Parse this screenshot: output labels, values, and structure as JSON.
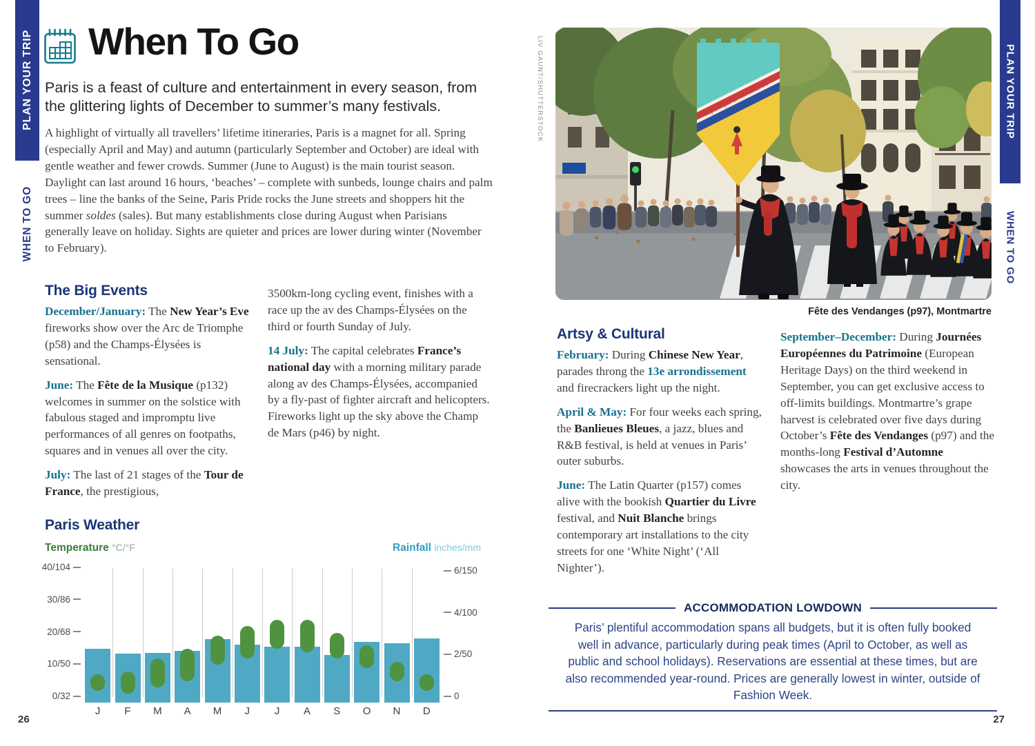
{
  "colors": {
    "sidebar_blue": "#2a3b8f",
    "heading_navy": "#1c3576",
    "date_teal": "#17728f",
    "icon_teal": "#137c8b",
    "accom_navy": "#2c4386",
    "bar_blue": "#4fa9c4",
    "range_green": "#4f9340"
  },
  "page": {
    "left_number": "26",
    "right_number": "27"
  },
  "sidebar": {
    "top_label": "PLAN YOUR TRIP",
    "bottom_label": "WHEN TO GO"
  },
  "header": {
    "title": "When To Go"
  },
  "standfirst": "Paris is a feast of culture and entertainment in every season, from the glittering lights of December to summer’s many festivals.",
  "intro": [
    [
      "p",
      "A highlight of virtually all travellers’ lifetime itineraries, Paris is a magnet for all. Spring (especially April and May) and autumn (particularly September and October) are ideal with gentle weather and fewer crowds. Summer (June to August) is the main tourist season. Daylight can last around 16 hours, ‘beaches’ – complete with sunbeds, lounge chairs and palm trees – line the banks of the Seine, Paris Pride rocks the June streets and shoppers hit the summer "
    ],
    [
      "i",
      "soldes"
    ],
    [
      "p",
      " (sales). But many establishments close during August when Parisians generally leave on holiday. Sights are quieter and prices are lower during winter (November to February)."
    ]
  ],
  "big_events": {
    "heading": "The Big Events",
    "col1": [
      [
        [
          "d",
          "December/January:"
        ],
        [
          "p",
          " The "
        ],
        [
          "b",
          "New Year’s Eve"
        ],
        [
          "p",
          " fireworks show over the Arc de Triomphe (p58) and the Champs-Élysées is sensational."
        ]
      ],
      [
        [
          "d",
          "June:"
        ],
        [
          "p",
          " The "
        ],
        [
          "b",
          "Fête de la Musique"
        ],
        [
          "p",
          " (p132) welcomes in summer on the solstice with fabulous staged and impromptu live performances of all genres on footpaths, squares and in venues all over the city."
        ]
      ],
      [
        [
          "d",
          "July:"
        ],
        [
          "p",
          " The last of 21 stages of the "
        ],
        [
          "b",
          "Tour de France"
        ],
        [
          "p",
          ", the prestigious,"
        ]
      ]
    ],
    "col2": [
      [
        [
          "p",
          "3500km-long cycling event, finishes with a race up the av des Champs-Élysées on the third or fourth Sunday of July."
        ]
      ],
      [
        [
          "d",
          "14 July:"
        ],
        [
          "p",
          " The capital celebrates "
        ],
        [
          "b",
          "France’s national day"
        ],
        [
          "p",
          " with a morning military parade along av des Champs-Élysées, accompanied by a fly-past of fighter aircraft and helicopters. Fireworks light up the sky above the Champ de Mars (p46) by night."
        ]
      ]
    ]
  },
  "artsy": {
    "heading": "Artsy & Cultural",
    "col1": [
      [
        [
          "d",
          "February:"
        ],
        [
          "p",
          " During "
        ],
        [
          "b",
          "Chinese New Year"
        ],
        [
          "p",
          ", parades throng the "
        ],
        [
          "d",
          "13e arrondissement"
        ],
        [
          "p",
          " and firecrackers light up the night."
        ]
      ],
      [
        [
          "d",
          "April & May:"
        ],
        [
          "p",
          " For four weeks each spring, the "
        ],
        [
          "b",
          "Banlieues Bleues"
        ],
        [
          "p",
          ", a jazz, blues and R&B festival, is held at venues in Paris’ outer suburbs."
        ]
      ],
      [
        [
          "d",
          "June:"
        ],
        [
          "p",
          " The Latin Quarter (p157) comes alive with the bookish "
        ],
        [
          "b",
          "Quartier du Livre"
        ],
        [
          "p",
          " festival, and "
        ],
        [
          "b",
          "Nuit Blanche"
        ],
        [
          "p",
          " brings contemporary art installations to the city streets for one ‘White Night’ (‘All Nighter’)."
        ]
      ]
    ],
    "col2": [
      [
        [
          "d",
          "September–December:"
        ],
        [
          "p",
          " During "
        ],
        [
          "b",
          "Journées Européennes du Patrimoine"
        ],
        [
          "p",
          " (European Heritage Days) on the third weekend in September, you can get exclusive access to off-limits buildings. Montmartre’s grape harvest is celebrated over five days during October’s "
        ],
        [
          "b",
          "Fête des Vendanges"
        ],
        [
          "p",
          " (p97) and the months-long "
        ],
        [
          "b",
          "Festival d’Automne"
        ],
        [
          "p",
          " showcases the arts in venues throughout the city."
        ]
      ]
    ]
  },
  "photo": {
    "caption": "Fête des Vendanges (p97), Montmartre",
    "credit": "LIV GAUNT/SHUTTERSTOCK",
    "banner_text": "République de Montmartre"
  },
  "accommodation": {
    "title": "ACCOMMODATION LOWDOWN",
    "body": "Paris’ plentiful accommodation spans all budgets, but it is often fully booked well in advance, particularly during peak times (April to October, as well as public and school holidays). Reservations are essential at these times, but are also recommended year-round. Prices are generally lowest in winter, outside of Fashion Week."
  },
  "chart_data": {
    "type": "bar",
    "title": "Paris Weather",
    "categories": [
      "J",
      "F",
      "M",
      "A",
      "M",
      "J",
      "J",
      "A",
      "S",
      "O",
      "N",
      "D"
    ],
    "series": [
      {
        "name": "Rainfall",
        "unit": "mm",
        "values": [
          58,
          52,
          53,
          55,
          69,
          63,
          60,
          60,
          50,
          66,
          64,
          70
        ]
      },
      {
        "name": "Temperature range",
        "unit": "°C",
        "values": [
          [
            2,
            7
          ],
          [
            1,
            8
          ],
          [
            3,
            12
          ],
          [
            5,
            15
          ],
          [
            10,
            19
          ],
          [
            12,
            22
          ],
          [
            15,
            24
          ],
          [
            14,
            24
          ],
          [
            12,
            20
          ],
          [
            9,
            16
          ],
          [
            5,
            11
          ],
          [
            2,
            7
          ]
        ]
      }
    ],
    "legend_left": {
      "label": "Temperature",
      "units": "°C/°F"
    },
    "legend_right": {
      "label": "Rainfall",
      "units": "inches/mm"
    },
    "temp_ticks": [
      [
        "40/104",
        40
      ],
      [
        "30/86",
        30
      ],
      [
        "20/68",
        20
      ],
      [
        "10/50",
        10
      ],
      [
        "0/32",
        0
      ]
    ],
    "rain_ticks": [
      [
        "6/150",
        150
      ],
      [
        "4/100",
        100
      ],
      [
        "2/50",
        50
      ],
      [
        "0",
        0
      ]
    ],
    "ylim_temp": [
      0,
      40
    ],
    "ylim_rain": [
      0,
      150
    ],
    "grid": "vertical month separators",
    "legend_position": "top"
  }
}
